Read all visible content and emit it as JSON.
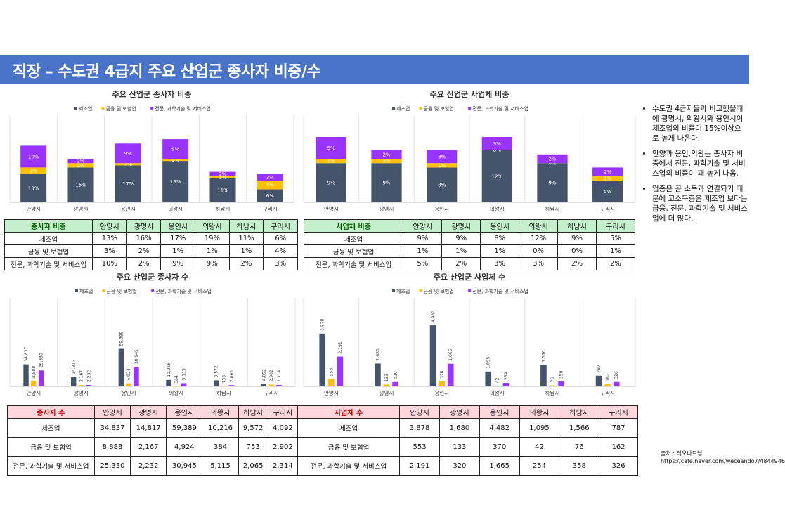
{
  "header": {
    "title": "직장 – 수도권 4급지 주요 산업군 종사자 비중/수"
  },
  "legend": [
    "제조업",
    "금융 및 보험업",
    "전문, 과학기술 및 서비스업"
  ],
  "colors": {
    "manufacturing": "#44546a",
    "finance": "#ffc000",
    "professional": "#9933ff",
    "banner": "#4a74c9"
  },
  "charts": [
    {
      "id": "c1",
      "chart_data": {
        "type": "bar",
        "stacked": true,
        "title": "주요 산업군 종사자 비중",
        "categories": [
          "안양시",
          "광명시",
          "용인시",
          "의왕시",
          "하남시",
          "구리시"
        ],
        "series": [
          {
            "name": "제조업",
            "values": [
              13,
              16,
              17,
              19,
              11,
              6
            ],
            "labels": [
              "13%",
              "16%",
              "17%",
              "19%",
              "11%",
              "6%"
            ]
          },
          {
            "name": "금융 및 보험업",
            "values": [
              3,
              2,
              1,
              1,
              1,
              4
            ],
            "labels": [
              "3%",
              "2%",
              "1%",
              "1%",
              "1%",
              "4%"
            ]
          },
          {
            "name": "전문, 과학기술 및 서비스업",
            "values": [
              10,
              2,
              9,
              9,
              2,
              3
            ],
            "labels": [
              "10%",
              "2%",
              "9%",
              "9%",
              "2%",
              "3%"
            ]
          }
        ],
        "ylim": [
          0,
          40
        ]
      }
    },
    {
      "id": "c2",
      "chart_data": {
        "type": "bar",
        "stacked": true,
        "title": "주요 산업군 사업체 비중",
        "categories": [
          "안양시",
          "광명시",
          "용인시",
          "의왕시",
          "하남시",
          "구리시"
        ],
        "series": [
          {
            "name": "제조업",
            "values": [
              9,
              9,
              8,
              12,
              9,
              5
            ],
            "labels": [
              "9%",
              "9%",
              "8%",
              "12%",
              "9%",
              "5%"
            ]
          },
          {
            "name": "금융 및 보험업",
            "values": [
              1,
              1,
              1,
              0,
              0,
              1
            ],
            "labels": [
              "1%",
              "1%",
              "1%",
              "0%",
              "0%",
              "1%"
            ]
          },
          {
            "name": "전문, 과학기술 및 서비스업",
            "values": [
              5,
              2,
              3,
              3,
              2,
              2
            ],
            "labels": [
              "5%",
              "2%",
              "3%",
              "3%",
              "2%",
              "2%"
            ]
          }
        ],
        "ylim": [
          0,
          20
        ]
      }
    },
    {
      "id": "c3",
      "chart_data": {
        "type": "bar",
        "stacked": false,
        "title": "주요 산업군 종사자 수",
        "categories": [
          "안양시",
          "광명시",
          "용인시",
          "의왕시",
          "하남시",
          "구리시"
        ],
        "series": [
          {
            "name": "제조업",
            "values": [
              34837,
              14817,
              59389,
              10216,
              9572,
              4092
            ],
            "labels": [
              "34,837",
              "14,817",
              "59,389",
              "10,216",
              "9,572",
              "4,092"
            ]
          },
          {
            "name": "금융 및 보험업",
            "values": [
              8888,
              2167,
              4924,
              384,
              753,
              2902
            ],
            "labels": [
              "8,888",
              "2,167",
              "4,924",
              "384",
              "753",
              "2,902"
            ]
          },
          {
            "name": "전문, 과학기술 및 서비스업",
            "values": [
              25330,
              2232,
              30945,
              5115,
              2065,
              2314
            ],
            "labels": [
              "25,330",
              "2,232",
              "30,945",
              "5,115",
              "2,065",
              "2,314"
            ]
          }
        ],
        "ylim": [
          0,
          140000
        ]
      }
    },
    {
      "id": "c4",
      "chart_data": {
        "type": "bar",
        "stacked": false,
        "title": "주요 산업군 사업체 수",
        "categories": [
          "안양시",
          "광명시",
          "용인시",
          "의왕시",
          "하남시",
          "구리시"
        ],
        "series": [
          {
            "name": "제조업",
            "values": [
              3878,
              1680,
              4482,
              1095,
              1566,
              787
            ],
            "labels": [
              "3,878",
              "1,680",
              "4,482",
              "1,095",
              "1,566",
              "787"
            ]
          },
          {
            "name": "금융 및 보험업",
            "values": [
              553,
              133,
              370,
              42,
              76,
              162
            ],
            "labels": [
              "553",
              "133",
              "370",
              "42",
              "76",
              "162"
            ]
          },
          {
            "name": "전문, 과학기술 및 서비스업",
            "values": [
              2191,
              320,
              1665,
              254,
              358,
              326
            ],
            "labels": [
              "2,191",
              "320",
              "1,665",
              "254",
              "358",
              "326"
            ]
          }
        ],
        "ylim": [
          0,
          6500
        ]
      }
    }
  ],
  "tables": [
    {
      "id": "t1",
      "header": [
        "종사자 비중",
        "안양시",
        "광명시",
        "용인시",
        "의왕시",
        "하남시",
        "구리시"
      ],
      "rows": [
        [
          "제조업",
          "13%",
          "16%",
          "17%",
          "19%",
          "11%",
          "6%"
        ],
        [
          "금융 및 보험업",
          "3%",
          "2%",
          "1%",
          "1%",
          "1%",
          "4%"
        ],
        [
          "전문, 과학기술 및 서비스업",
          "10%",
          "2%",
          "9%",
          "9%",
          "2%",
          "3%"
        ]
      ]
    },
    {
      "id": "t2",
      "header": [
        "사업체 비중",
        "안양시",
        "광명시",
        "용인시",
        "의왕시",
        "하남시",
        "구리시"
      ],
      "rows": [
        [
          "제조업",
          "9%",
          "9%",
          "8%",
          "12%",
          "9%",
          "5%"
        ],
        [
          "금융 및 보험업",
          "1%",
          "1%",
          "1%",
          "0%",
          "0%",
          "1%"
        ],
        [
          "전문, 과학기술 및 서비스업",
          "5%",
          "2%",
          "3%",
          "3%",
          "2%",
          "2%"
        ]
      ]
    },
    {
      "id": "t3",
      "header": [
        "종사자 수",
        "안양시",
        "광명시",
        "용인시",
        "의왕시",
        "하남시",
        "구리시"
      ],
      "rows": [
        [
          "제조업",
          "34,837",
          "14,817",
          "59,389",
          "10,216",
          "9,572",
          "4,092"
        ],
        [
          "금융 및 보험업",
          "8,888",
          "2,167",
          "4,924",
          "384",
          "753",
          "2,902"
        ],
        [
          "전문, 과학기술 및 서비스업",
          "25,330",
          "2,232",
          "30,945",
          "5,115",
          "2,065",
          "2,314"
        ]
      ]
    },
    {
      "id": "t4",
      "header": [
        "사업체 수",
        "안양시",
        "광명시",
        "용인시",
        "의왕시",
        "하남시",
        "구리시"
      ],
      "rows": [
        [
          "제조업",
          "3,878",
          "1,680",
          "4,482",
          "1,095",
          "1,566",
          "787"
        ],
        [
          "금융 및 보험업",
          "553",
          "133",
          "370",
          "42",
          "76",
          "162"
        ],
        [
          "전문, 과학기술 및 서비스업",
          "2,191",
          "320",
          "1,665",
          "254",
          "358",
          "326"
        ]
      ]
    }
  ],
  "notes": [
    "수도권 4급지들과 비교했을때에 광명시, 의왕시와 용인시이 제조업의 비중이 15%이상으로 높게 나온다.",
    "안양과 용인,의왕는 종사자 비중에서 전문, 과학기술 및 서비스업의 비중이 꽤 높게 나옴.",
    "업종은 곧 소득과 연결되기 때문에 고소득층은 제조업 보다는 금융, 전문, 과학기술 및 서비스업에 더 많다."
  ],
  "source": "출처 : 레오나드님 https://cafe.naver.com/weceando7/4844946"
}
